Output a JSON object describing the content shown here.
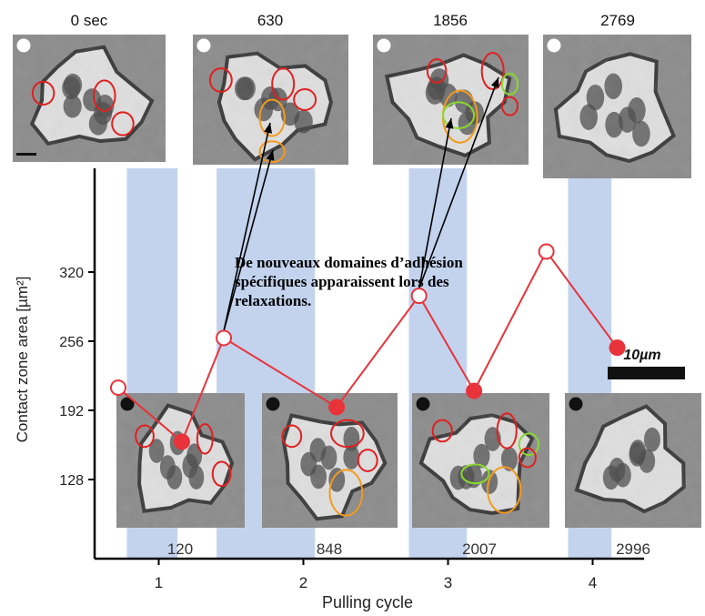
{
  "chart_data": {
    "type": "line",
    "title": "",
    "xlabel": "Pulling cycle",
    "ylabel": "Contact zone area [µm²]",
    "xlim": [
      0.5,
      4.6
    ],
    "ylim": [
      64,
      364
    ],
    "x_ticks": [
      "1",
      "2",
      "3",
      "4"
    ],
    "y_ticks": [
      "128",
      "192",
      "256",
      "320"
    ],
    "shaded_bands": [
      [
        0.78,
        1.13
      ],
      [
        1.4,
        2.08
      ],
      [
        2.73,
        3.13
      ],
      [
        3.83,
        4.13
      ]
    ],
    "series": [
      {
        "name": "",
        "color": "#e8333a",
        "x": [
          0.72,
          1.16,
          1.45,
          2.23,
          2.8,
          3.18,
          3.68,
          4.17
        ],
        "y": [
          213,
          163,
          259,
          195,
          298,
          210,
          339,
          250
        ],
        "marker_fill": [
          "open",
          "filled",
          "open",
          "filled",
          "open",
          "filled",
          "open",
          "filled"
        ]
      }
    ],
    "scale_bar_label": "10µm",
    "annotation": [
      "De nouveaux domaines d’adhésion",
      "spécifiques apparaissent lors des",
      "relaxations."
    ],
    "images": [
      {
        "time_label": "0 sec",
        "state": "open"
      },
      {
        "time_label": "630",
        "state": "open"
      },
      {
        "time_label": "1856",
        "state": "open"
      },
      {
        "time_label": "2769",
        "state": "open"
      },
      {
        "time_label": "120",
        "state": "filled"
      },
      {
        "time_label": "848",
        "state": "filled"
      },
      {
        "time_label": "2007",
        "state": "filled"
      },
      {
        "time_label": "2996",
        "state": "filled"
      }
    ],
    "colors": {
      "line": "#e8333a",
      "band": "#c3d3ee",
      "highlight_red": "#e02020",
      "highlight_orange": "#f29a1f",
      "highlight_green": "#88d92e"
    }
  }
}
